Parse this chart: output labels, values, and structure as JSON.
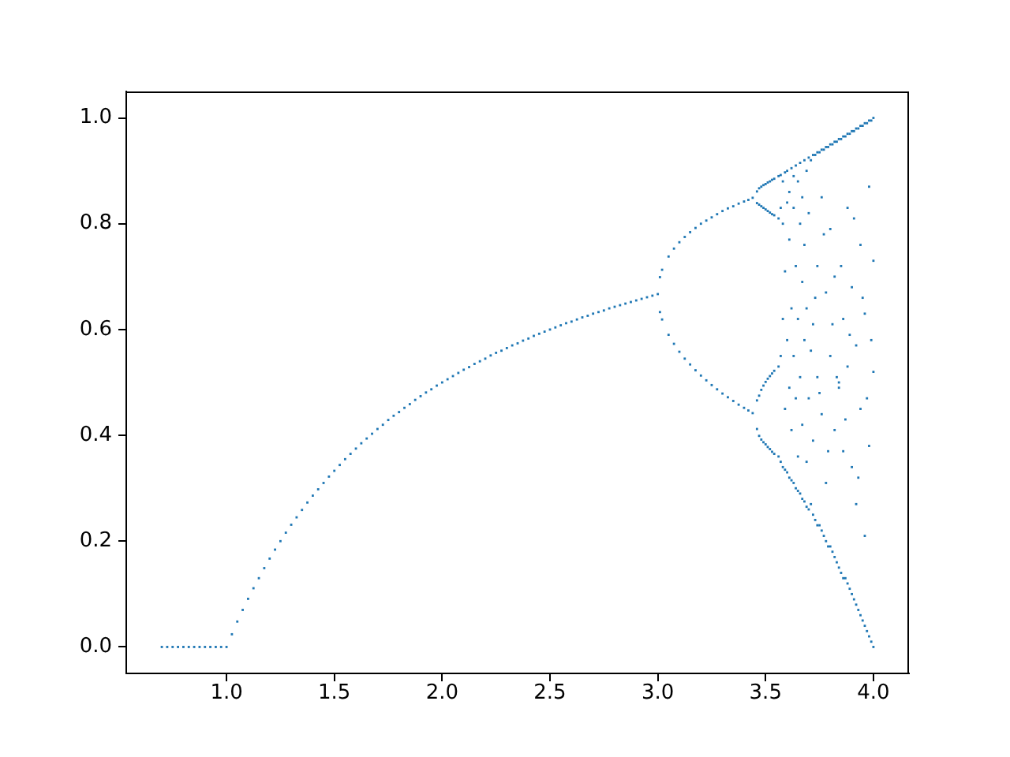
{
  "chart_data": {
    "type": "scatter",
    "x": [
      0.7,
      0.75,
      0.8,
      0.85,
      0.9,
      0.95,
      1.0,
      1.05,
      1.1,
      1.15,
      1.2,
      1.25,
      1.3,
      1.35,
      1.4,
      1.45,
      1.5,
      1.55,
      1.6,
      1.65,
      1.7,
      1.75,
      1.8,
      1.85,
      1.9,
      1.95,
      2.0,
      2.05,
      2.1,
      2.15,
      2.2,
      2.25,
      2.3,
      2.35,
      2.4,
      2.45,
      2.5,
      2.55,
      2.6,
      2.65,
      2.7,
      2.75,
      2.8,
      2.85,
      2.9,
      2.95,
      3.0,
      3.02,
      3.02,
      3.05,
      3.05,
      3.1,
      3.1,
      3.15,
      3.15,
      3.2,
      3.2,
      3.25,
      3.25,
      3.3,
      3.3,
      3.35,
      3.35,
      3.4,
      3.4,
      3.44,
      3.44,
      3.46,
      3.46,
      3.46,
      3.46,
      3.47,
      3.47,
      3.47,
      3.47,
      3.48,
      3.48,
      3.48,
      3.48,
      3.5,
      3.5,
      3.5,
      3.5,
      3.52,
      3.52,
      3.52,
      3.52,
      3.54,
      3.54,
      3.54,
      3.54,
      3.56,
      3.56,
      3.56,
      3.56,
      3.57,
      3.57,
      3.57,
      3.57,
      3.58,
      3.58,
      3.58,
      3.58,
      3.59,
      3.59,
      3.59,
      3.59,
      3.6,
      3.6,
      3.6,
      3.6,
      3.61,
      3.61,
      3.61,
      3.61,
      3.62,
      3.62,
      3.62,
      3.62,
      3.63,
      3.63,
      3.63,
      3.63,
      3.64,
      3.64,
      3.64,
      3.64,
      3.65,
      3.65,
      3.65,
      3.65,
      3.66,
      3.66,
      3.66,
      3.66,
      3.67,
      3.67,
      3.67,
      3.67,
      3.68,
      3.68,
      3.68,
      3.68,
      3.69,
      3.69,
      3.69,
      3.69,
      3.7,
      3.7,
      3.7,
      3.7,
      3.72,
      3.72,
      3.72,
      3.72,
      3.74,
      3.74,
      3.74,
      3.74,
      3.76,
      3.76,
      3.76,
      3.76,
      3.78,
      3.78,
      3.78,
      3.78,
      3.8,
      3.8,
      3.8,
      3.8,
      3.82,
      3.82,
      3.82,
      3.82,
      3.84,
      3.84,
      3.84,
      3.84,
      3.86,
      3.86,
      3.86,
      3.86,
      3.88,
      3.88,
      3.88,
      3.88,
      3.9,
      3.9,
      3.9,
      3.9,
      3.92,
      3.92,
      3.92,
      3.92,
      3.94,
      3.94,
      3.94,
      3.94,
      3.96,
      3.96,
      3.96,
      3.96,
      3.98,
      3.98,
      3.98,
      3.98,
      4.0,
      4.0,
      4.0,
      4.0,
      0.725,
      0.775,
      0.825,
      0.875,
      0.925,
      0.975,
      1.025,
      1.075,
      1.125,
      1.175,
      1.225,
      1.275,
      1.325,
      1.375,
      1.425,
      1.475,
      1.525,
      1.575,
      1.625,
      1.675,
      1.725,
      1.775,
      1.825,
      1.875,
      1.925,
      1.975,
      2.025,
      2.075,
      2.125,
      2.175,
      2.225,
      2.275,
      2.325,
      2.375,
      2.425,
      2.475,
      2.525,
      2.575,
      2.625,
      2.675,
      2.725,
      2.775,
      2.825,
      2.875,
      2.925,
      2.975,
      3.01,
      3.01,
      3.075,
      3.075,
      3.125,
      3.125,
      3.175,
      3.175,
      3.225,
      3.225,
      3.275,
      3.275,
      3.325,
      3.325,
      3.375,
      3.375,
      3.42,
      3.42,
      3.49,
      3.49,
      3.49,
      3.49,
      3.51,
      3.51,
      3.51,
      3.51,
      3.53,
      3.53,
      3.53,
      3.53,
      3.71,
      3.71,
      3.71,
      3.73,
      3.73,
      3.73,
      3.75,
      3.75,
      3.75,
      3.77,
      3.77,
      3.77,
      3.79,
      3.79,
      3.79,
      3.81,
      3.81,
      3.81,
      3.83,
      3.83,
      3.83,
      3.85,
      3.85,
      3.85,
      3.87,
      3.87,
      3.87,
      3.89,
      3.89,
      3.89,
      3.91,
      3.91,
      3.91,
      3.93,
      3.93,
      3.93,
      3.95,
      3.95,
      3.95,
      3.97,
      3.97,
      3.97,
      3.99,
      3.99,
      3.99
    ],
    "values": [
      0,
      0,
      0,
      0,
      0,
      0,
      0,
      0.048,
      0.091,
      0.13,
      0.167,
      0.2,
      0.231,
      0.259,
      0.286,
      0.31,
      0.333,
      0.355,
      0.375,
      0.394,
      0.412,
      0.429,
      0.444,
      0.459,
      0.474,
      0.487,
      0.5,
      0.512,
      0.524,
      0.535,
      0.545,
      0.556,
      0.565,
      0.574,
      0.583,
      0.592,
      0.6,
      0.608,
      0.615,
      0.623,
      0.63,
      0.636,
      0.643,
      0.649,
      0.655,
      0.661,
      0.667,
      0.713,
      0.619,
      0.738,
      0.59,
      0.765,
      0.558,
      0.784,
      0.534,
      0.8,
      0.513,
      0.812,
      0.495,
      0.824,
      0.479,
      0.833,
      0.465,
      0.842,
      0.452,
      0.849,
      0.442,
      0.861,
      0.839,
      0.466,
      0.412,
      0.867,
      0.836,
      0.475,
      0.399,
      0.87,
      0.833,
      0.486,
      0.392,
      0.875,
      0.827,
      0.501,
      0.383,
      0.88,
      0.821,
      0.512,
      0.374,
      0.885,
      0.816,
      0.522,
      0.365,
      0.89,
      0.81,
      0.53,
      0.36,
      0.892,
      0.35,
      0.55,
      0.83,
      0.88,
      0.34,
      0.62,
      0.8,
      0.897,
      0.45,
      0.335,
      0.71,
      0.9,
      0.33,
      0.58,
      0.84,
      0.86,
      0.32,
      0.49,
      0.77,
      0.905,
      0.41,
      0.64,
      0.315,
      0.83,
      0.31,
      0.55,
      0.89,
      0.91,
      0.3,
      0.47,
      0.72,
      0.88,
      0.36,
      0.62,
      0.295,
      0.915,
      0.29,
      0.51,
      0.8,
      0.85,
      0.28,
      0.69,
      0.42,
      0.92,
      0.275,
      0.58,
      0.76,
      0.9,
      0.35,
      0.265,
      0.64,
      0.925,
      0.26,
      0.47,
      0.82,
      0.93,
      0.25,
      0.61,
      0.39,
      0.935,
      0.23,
      0.72,
      0.51,
      0.94,
      0.22,
      0.44,
      0.85,
      0.945,
      0.2,
      0.67,
      0.31,
      0.95,
      0.19,
      0.55,
      0.79,
      0.955,
      0.17,
      0.41,
      0.7,
      0.96,
      0.15,
      0.49,
      0.5,
      0.965,
      0.13,
      0.62,
      0.37,
      0.97,
      0.12,
      0.53,
      0.83,
      0.975,
      0.1,
      0.34,
      0.68,
      0.98,
      0.08,
      0.57,
      0.27,
      0.985,
      0.06,
      0.45,
      0.76,
      0.99,
      0.04,
      0.63,
      0.21,
      0.995,
      0.02,
      0.38,
      0.87,
      1.0,
      0.0,
      0.52,
      0.73,
      0,
      0,
      0,
      0,
      0,
      0,
      0.024,
      0.07,
      0.111,
      0.149,
      0.184,
      0.216,
      0.245,
      0.273,
      0.298,
      0.322,
      0.344,
      0.365,
      0.385,
      0.403,
      0.42,
      0.437,
      0.452,
      0.467,
      0.481,
      0.494,
      0.506,
      0.518,
      0.529,
      0.54,
      0.551,
      0.56,
      0.57,
      0.579,
      0.588,
      0.596,
      0.604,
      0.612,
      0.619,
      0.626,
      0.633,
      0.64,
      0.646,
      0.652,
      0.658,
      0.664,
      0.699,
      0.633,
      0.753,
      0.573,
      0.775,
      0.545,
      0.792,
      0.523,
      0.806,
      0.504,
      0.818,
      0.487,
      0.829,
      0.472,
      0.838,
      0.458,
      0.845,
      0.447,
      0.873,
      0.83,
      0.494,
      0.387,
      0.878,
      0.824,
      0.507,
      0.378,
      0.883,
      0.818,
      0.517,
      0.369,
      0.92,
      0.27,
      0.56,
      0.93,
      0.24,
      0.66,
      0.935,
      0.23,
      0.48,
      0.94,
      0.21,
      0.78,
      0.945,
      0.19,
      0.37,
      0.95,
      0.18,
      0.61,
      0.955,
      0.16,
      0.51,
      0.96,
      0.14,
      0.72,
      0.965,
      0.13,
      0.43,
      0.97,
      0.11,
      0.59,
      0.975,
      0.09,
      0.81,
      0.98,
      0.07,
      0.32,
      0.985,
      0.05,
      0.66,
      0.99,
      0.03,
      0.47,
      0.995,
      0.01,
      0.58
    ],
    "color": "#1f77b4",
    "marker": "square",
    "xlim": [
      0.535,
      4.165
    ],
    "ylim": [
      -0.05,
      1.05
    ],
    "xticks": [
      {
        "value": 1,
        "label": "1.0"
      },
      1.5,
      {
        "value": 2,
        "label": "2.0"
      },
      2.5,
      {
        "value": 3,
        "label": "3.0"
      },
      3.5,
      {
        "value": 4,
        "label": "4.0"
      }
    ],
    "yticks": [
      {
        "value": 0,
        "label": "0.0"
      },
      0.2,
      0.4,
      0.6,
      0.8,
      {
        "value": 1,
        "label": "1.0"
      }
    ],
    "grid": false,
    "legend": false
  }
}
